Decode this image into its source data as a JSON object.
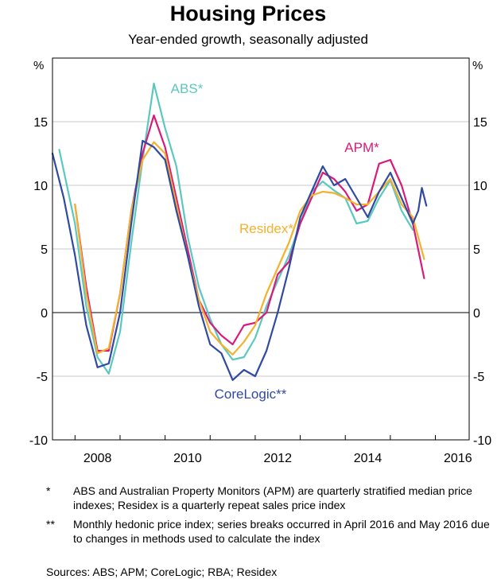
{
  "chart_data": {
    "type": "line",
    "title": "Housing Prices",
    "subtitle": "Year-ended growth, seasonally adjusted",
    "ylabel_left": "%",
    "ylabel_right": "%",
    "ylim": [
      -10,
      20
    ],
    "yticks": [
      -10,
      -5,
      0,
      5,
      10,
      15
    ],
    "xlim": [
      2007.5,
      2016.75
    ],
    "xticks": [
      2008,
      2010,
      2012,
      2014,
      2016
    ],
    "series": [
      {
        "name": "ABS*",
        "color": "#5bc8c0",
        "points": [
          [
            2007.65,
            12.8
          ],
          [
            2008.0,
            7.0
          ],
          [
            2008.25,
            0.5
          ],
          [
            2008.5,
            -3.5
          ],
          [
            2008.75,
            -4.8
          ],
          [
            2009.0,
            -1.5
          ],
          [
            2009.25,
            5.5
          ],
          [
            2009.5,
            12.0
          ],
          [
            2009.75,
            18.0
          ],
          [
            2010.0,
            14.5
          ],
          [
            2010.25,
            11.5
          ],
          [
            2010.5,
            6.0
          ],
          [
            2010.75,
            2.0
          ],
          [
            2011.0,
            -0.5
          ],
          [
            2011.25,
            -2.5
          ],
          [
            2011.5,
            -3.7
          ],
          [
            2011.75,
            -3.5
          ],
          [
            2012.0,
            -2.0
          ],
          [
            2012.25,
            0.5
          ],
          [
            2012.5,
            2.5
          ],
          [
            2012.75,
            4.5
          ],
          [
            2013.0,
            7.0
          ],
          [
            2013.25,
            9.5
          ],
          [
            2013.5,
            10.3
          ],
          [
            2013.75,
            9.6
          ],
          [
            2014.0,
            9.0
          ],
          [
            2014.25,
            7.0
          ],
          [
            2014.5,
            7.2
          ],
          [
            2014.75,
            9.0
          ],
          [
            2015.0,
            10.4
          ],
          [
            2015.25,
            8.0
          ],
          [
            2015.5,
            6.5
          ]
        ]
      },
      {
        "name": "APM*",
        "color": "#d81b7a",
        "points": [
          [
            2008.0,
            8.5
          ],
          [
            2008.25,
            2.0
          ],
          [
            2008.5,
            -3.0
          ],
          [
            2008.75,
            -3.0
          ],
          [
            2009.0,
            1.5
          ],
          [
            2009.25,
            8.0
          ],
          [
            2009.5,
            12.5
          ],
          [
            2009.75,
            15.5
          ],
          [
            2010.0,
            13.0
          ],
          [
            2010.25,
            9.0
          ],
          [
            2010.5,
            5.0
          ],
          [
            2010.75,
            1.0
          ],
          [
            2011.0,
            -0.8
          ],
          [
            2011.25,
            -1.8
          ],
          [
            2011.5,
            -2.5
          ],
          [
            2011.75,
            -1.0
          ],
          [
            2012.0,
            -0.8
          ],
          [
            2012.25,
            0.0
          ],
          [
            2012.5,
            3.0
          ],
          [
            2012.75,
            4.0
          ],
          [
            2013.0,
            7.0
          ],
          [
            2013.25,
            9.0
          ],
          [
            2013.5,
            11.0
          ],
          [
            2013.75,
            10.5
          ],
          [
            2014.0,
            9.5
          ],
          [
            2014.25,
            8.0
          ],
          [
            2014.5,
            8.5
          ],
          [
            2014.75,
            11.7
          ],
          [
            2015.0,
            12.0
          ],
          [
            2015.25,
            10.0
          ],
          [
            2015.5,
            7.0
          ],
          [
            2015.75,
            2.7
          ]
        ]
      },
      {
        "name": "Residex*",
        "color": "#f4b12c",
        "points": [
          [
            2008.0,
            8.5
          ],
          [
            2008.25,
            1.5
          ],
          [
            2008.5,
            -3.2
          ],
          [
            2008.75,
            -2.8
          ],
          [
            2009.0,
            1.5
          ],
          [
            2009.25,
            8.0
          ],
          [
            2009.5,
            12.0
          ],
          [
            2009.75,
            13.4
          ],
          [
            2010.0,
            12.5
          ],
          [
            2010.25,
            8.5
          ],
          [
            2010.5,
            4.5
          ],
          [
            2010.75,
            1.0
          ],
          [
            2011.0,
            -1.5
          ],
          [
            2011.25,
            -2.5
          ],
          [
            2011.5,
            -3.3
          ],
          [
            2011.75,
            -2.3
          ],
          [
            2012.0,
            -1.0
          ],
          [
            2012.25,
            1.5
          ],
          [
            2012.5,
            3.5
          ],
          [
            2012.75,
            5.5
          ],
          [
            2013.0,
            8.0
          ],
          [
            2013.25,
            9.2
          ],
          [
            2013.5,
            9.5
          ],
          [
            2013.75,
            9.4
          ],
          [
            2014.0,
            9.0
          ],
          [
            2014.25,
            8.5
          ],
          [
            2014.5,
            8.5
          ],
          [
            2014.75,
            9.5
          ],
          [
            2015.0,
            10.5
          ],
          [
            2015.25,
            8.5
          ],
          [
            2015.5,
            7.5
          ],
          [
            2015.75,
            4.2
          ]
        ]
      },
      {
        "name": "CoreLogic**",
        "color": "#2f4aa0",
        "points": [
          [
            2007.5,
            12.5
          ],
          [
            2007.75,
            9.0
          ],
          [
            2008.0,
            4.5
          ],
          [
            2008.25,
            -1.0
          ],
          [
            2008.5,
            -4.3
          ],
          [
            2008.75,
            -4.0
          ],
          [
            2009.0,
            0.0
          ],
          [
            2009.25,
            7.0
          ],
          [
            2009.5,
            13.5
          ],
          [
            2009.75,
            13.0
          ],
          [
            2010.0,
            12.0
          ],
          [
            2010.25,
            8.0
          ],
          [
            2010.5,
            4.5
          ],
          [
            2010.75,
            0.5
          ],
          [
            2011.0,
            -2.5
          ],
          [
            2011.25,
            -3.2
          ],
          [
            2011.5,
            -5.3
          ],
          [
            2011.75,
            -4.5
          ],
          [
            2012.0,
            -5.0
          ],
          [
            2012.25,
            -3.0
          ],
          [
            2012.5,
            0.0
          ],
          [
            2012.75,
            3.5
          ],
          [
            2013.0,
            7.5
          ],
          [
            2013.25,
            9.5
          ],
          [
            2013.5,
            11.5
          ],
          [
            2013.75,
            10.0
          ],
          [
            2014.0,
            10.5
          ],
          [
            2014.25,
            9.0
          ],
          [
            2014.5,
            7.5
          ],
          [
            2014.75,
            9.5
          ],
          [
            2015.0,
            11.0
          ],
          [
            2015.25,
            9.0
          ],
          [
            2015.5,
            7.0
          ],
          [
            2015.62,
            8.0
          ],
          [
            2015.7,
            9.8
          ],
          [
            2015.8,
            8.4
          ]
        ]
      }
    ],
    "annotations": [
      {
        "label": "ABS*",
        "color": "#5bc8c0"
      },
      {
        "label": "APM*",
        "color": "#d81b7a"
      },
      {
        "label": "Residex*",
        "color": "#f4b12c"
      },
      {
        "label": "CoreLogic**",
        "color": "#2f4aa0"
      }
    ]
  },
  "notes": [
    {
      "mark": "*",
      "text": "ABS and Australian Property Monitors (APM) are quarterly stratified median price indexes; Residex is a quarterly repeat sales price index"
    },
    {
      "mark": "**",
      "text": "Monthly hedonic price index; series breaks occurred in April 2016 and May 2016 due to changes in methods used to calculate the index"
    }
  ],
  "sources": "Sources:  ABS; APM; CoreLogic; RBA; Residex"
}
